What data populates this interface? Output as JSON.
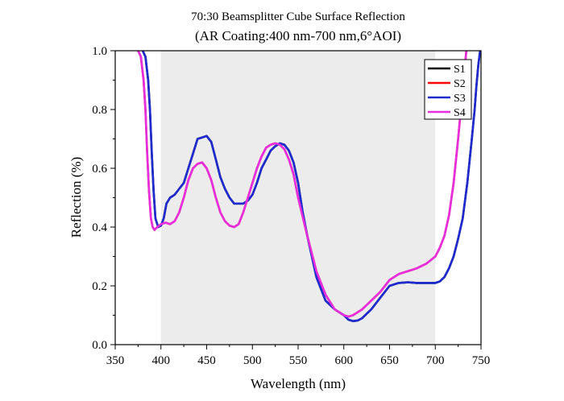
{
  "chart_data": {
    "type": "line",
    "title": "70:30 Beamsplitter Cube Surface Reflection",
    "subtitle": "(AR Coating:400 nm-700 nm,6°AOI)",
    "xlabel": "Wavelength (nm)",
    "ylabel": "Reflection (%)",
    "xlim": [
      350,
      750
    ],
    "ylim": [
      0,
      1.0
    ],
    "xticks": [
      350,
      400,
      450,
      500,
      550,
      600,
      650,
      700,
      750
    ],
    "xtick_labels": [
      "350",
      "400",
      "450",
      "500",
      "550",
      "600",
      "650",
      "700",
      "750"
    ],
    "yticks": [
      0,
      0.2,
      0.4,
      0.6,
      0.8,
      1.0
    ],
    "ytick_labels": [
      "0.0",
      "0.2",
      "0.4",
      "0.6",
      "0.8",
      "1.0"
    ],
    "shaded_band": [
      400,
      700
    ],
    "shaded_color": "#ececec",
    "legend_position": "top-right",
    "grid": false,
    "series": [
      {
        "name": "S1",
        "color": "#000000",
        "x": [
          380,
          383,
          386,
          388,
          390,
          392,
          394,
          397,
          400,
          403,
          406,
          410,
          415,
          420,
          425,
          430,
          435,
          440,
          445,
          450,
          455,
          460,
          465,
          470,
          475,
          480,
          485,
          490,
          495,
          500,
          505,
          510,
          515,
          520,
          525,
          530,
          535,
          540,
          545,
          550,
          555,
          560,
          570,
          580,
          590,
          600,
          605,
          610,
          615,
          620,
          630,
          640,
          650,
          660,
          670,
          680,
          690,
          700,
          705,
          710,
          715,
          720,
          725,
          730,
          735,
          740,
          743,
          745,
          747,
          749
        ],
        "y": [
          1.0,
          0.98,
          0.9,
          0.8,
          0.65,
          0.52,
          0.43,
          0.4,
          0.405,
          0.43,
          0.48,
          0.5,
          0.51,
          0.53,
          0.55,
          0.6,
          0.65,
          0.7,
          0.705,
          0.71,
          0.69,
          0.63,
          0.57,
          0.53,
          0.5,
          0.48,
          0.48,
          0.48,
          0.49,
          0.51,
          0.55,
          0.6,
          0.63,
          0.66,
          0.675,
          0.685,
          0.68,
          0.66,
          0.62,
          0.55,
          0.45,
          0.37,
          0.23,
          0.15,
          0.12,
          0.1,
          0.085,
          0.08,
          0.082,
          0.09,
          0.12,
          0.16,
          0.2,
          0.21,
          0.212,
          0.21,
          0.21,
          0.21,
          0.215,
          0.23,
          0.26,
          0.3,
          0.36,
          0.43,
          0.55,
          0.7,
          0.8,
          0.88,
          0.95,
          1.0
        ]
      },
      {
        "name": "S2",
        "color": "#ff0000",
        "x": [
          375,
          378,
          381,
          383,
          385,
          387,
          389,
          391,
          393,
          396,
          400,
          405,
          410,
          415,
          420,
          425,
          430,
          435,
          440,
          445,
          450,
          455,
          460,
          465,
          470,
          475,
          480,
          485,
          490,
          495,
          500,
          505,
          510,
          515,
          520,
          525,
          530,
          535,
          540,
          545,
          550,
          560,
          570,
          580,
          590,
          600,
          605,
          610,
          620,
          630,
          640,
          650,
          660,
          670,
          680,
          690,
          700,
          705,
          710,
          715,
          720,
          725,
          728,
          731,
          734
        ],
        "y": [
          1.0,
          0.98,
          0.9,
          0.8,
          0.65,
          0.52,
          0.43,
          0.4,
          0.39,
          0.4,
          0.41,
          0.415,
          0.41,
          0.42,
          0.45,
          0.5,
          0.56,
          0.6,
          0.615,
          0.62,
          0.6,
          0.56,
          0.5,
          0.45,
          0.42,
          0.405,
          0.4,
          0.41,
          0.45,
          0.5,
          0.55,
          0.6,
          0.64,
          0.67,
          0.68,
          0.685,
          0.68,
          0.665,
          0.63,
          0.58,
          0.5,
          0.37,
          0.25,
          0.17,
          0.12,
          0.1,
          0.095,
          0.1,
          0.12,
          0.15,
          0.18,
          0.22,
          0.24,
          0.25,
          0.26,
          0.275,
          0.3,
          0.33,
          0.37,
          0.44,
          0.55,
          0.7,
          0.8,
          0.9,
          1.0
        ]
      },
      {
        "name": "S3",
        "color": "#1f2bd1",
        "x": [
          380,
          383,
          386,
          388,
          390,
          392,
          394,
          397,
          400,
          403,
          406,
          410,
          415,
          420,
          425,
          430,
          435,
          440,
          445,
          450,
          455,
          460,
          465,
          470,
          475,
          480,
          485,
          490,
          495,
          500,
          505,
          510,
          515,
          520,
          525,
          530,
          535,
          540,
          545,
          550,
          555,
          560,
          570,
          580,
          590,
          600,
          605,
          610,
          615,
          620,
          630,
          640,
          650,
          660,
          670,
          680,
          690,
          700,
          705,
          710,
          715,
          720,
          725,
          730,
          735,
          740,
          743,
          745,
          747,
          749
        ],
        "y": [
          1.0,
          0.98,
          0.9,
          0.8,
          0.65,
          0.52,
          0.43,
          0.4,
          0.405,
          0.43,
          0.48,
          0.5,
          0.51,
          0.53,
          0.55,
          0.6,
          0.65,
          0.7,
          0.705,
          0.71,
          0.69,
          0.63,
          0.57,
          0.53,
          0.5,
          0.48,
          0.48,
          0.48,
          0.49,
          0.51,
          0.55,
          0.6,
          0.63,
          0.66,
          0.675,
          0.685,
          0.68,
          0.66,
          0.62,
          0.55,
          0.45,
          0.37,
          0.23,
          0.15,
          0.12,
          0.1,
          0.085,
          0.08,
          0.082,
          0.09,
          0.12,
          0.16,
          0.2,
          0.21,
          0.212,
          0.21,
          0.21,
          0.21,
          0.215,
          0.23,
          0.26,
          0.3,
          0.36,
          0.43,
          0.55,
          0.7,
          0.8,
          0.88,
          0.95,
          1.0
        ]
      },
      {
        "name": "S4",
        "color": "#e62ee0",
        "x": [
          375,
          378,
          381,
          383,
          385,
          387,
          389,
          391,
          393,
          396,
          400,
          405,
          410,
          415,
          420,
          425,
          430,
          435,
          440,
          445,
          450,
          455,
          460,
          465,
          470,
          475,
          480,
          485,
          490,
          495,
          500,
          505,
          510,
          515,
          520,
          525,
          530,
          535,
          540,
          545,
          550,
          560,
          570,
          580,
          590,
          600,
          605,
          610,
          620,
          630,
          640,
          650,
          660,
          670,
          680,
          690,
          700,
          705,
          710,
          715,
          720,
          725,
          728,
          731,
          734
        ],
        "y": [
          1.0,
          0.98,
          0.9,
          0.8,
          0.65,
          0.52,
          0.43,
          0.4,
          0.39,
          0.4,
          0.41,
          0.415,
          0.41,
          0.42,
          0.45,
          0.5,
          0.56,
          0.6,
          0.615,
          0.62,
          0.6,
          0.56,
          0.5,
          0.45,
          0.42,
          0.405,
          0.4,
          0.41,
          0.45,
          0.5,
          0.55,
          0.6,
          0.64,
          0.67,
          0.68,
          0.685,
          0.68,
          0.665,
          0.63,
          0.58,
          0.5,
          0.37,
          0.25,
          0.17,
          0.12,
          0.1,
          0.095,
          0.1,
          0.12,
          0.15,
          0.18,
          0.22,
          0.24,
          0.25,
          0.26,
          0.275,
          0.3,
          0.33,
          0.37,
          0.44,
          0.55,
          0.7,
          0.8,
          0.9,
          1.0
        ]
      }
    ]
  }
}
